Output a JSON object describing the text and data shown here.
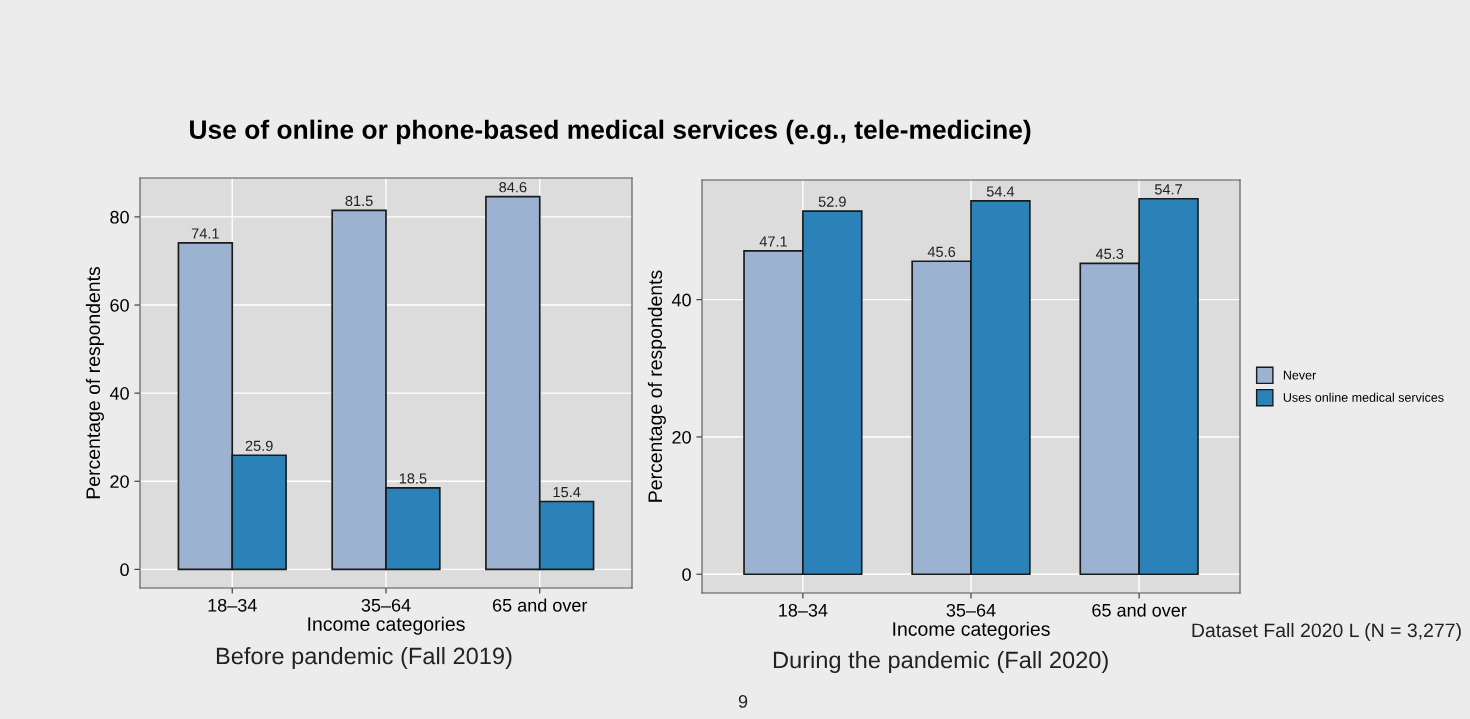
{
  "chart_data": [
    {
      "type": "bar",
      "title": "Use of online or phone-based medical services (e.g., tele-medicine)",
      "xlabel": "Income categories",
      "ylabel": "Percentage of respondents",
      "categories": [
        "18–34",
        "35–64",
        "65 and over"
      ],
      "series": [
        {
          "color": "#9bb3d1",
          "values": [
            74.1,
            81.5,
            84.6
          ]
        },
        {
          "color": "#2a82b9",
          "values": [
            25.9,
            18.5,
            15.4
          ]
        }
      ],
      "ylim": [
        -4.23,
        88.83
      ],
      "yticks": [
        0,
        20,
        40,
        60,
        80
      ],
      "grid": true,
      "data_labels": true,
      "legend": false,
      "annotations": [
        "Before pandemic (Fall 2019)"
      ]
    },
    {
      "type": "bar",
      "xlabel": "Income categories",
      "ylabel": "Percentage of respondents",
      "categories": [
        "18–34",
        "35–64",
        "65 and over"
      ],
      "series": [
        {
          "name": "Never",
          "color": "#9bb3d1",
          "values": [
            47.1,
            45.6,
            45.3
          ]
        },
        {
          "name": "Uses online medical services",
          "color": "#2a82b9",
          "values": [
            52.9,
            54.4,
            54.7
          ]
        }
      ],
      "ylim": [
        -2.735,
        57.435
      ],
      "yticks": [
        0,
        20,
        40
      ],
      "grid": true,
      "data_labels": true,
      "legend": "right",
      "annotations": [
        "During the pandemic (Fall 2020)",
        "Dataset Fall 2020 L (N = 3,277)",
        "9"
      ]
    }
  ]
}
